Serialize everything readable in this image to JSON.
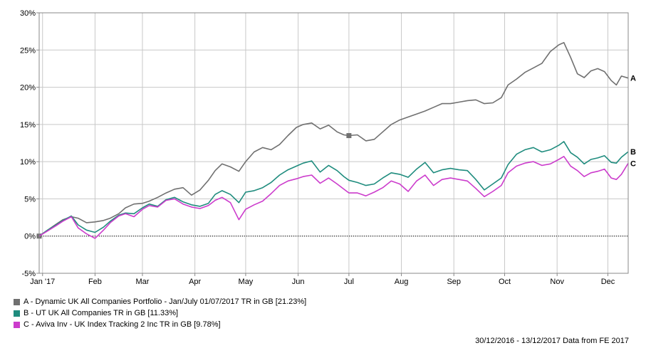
{
  "chart_data": {
    "type": "line",
    "title": "",
    "xlabel": "",
    "ylabel": "",
    "ylim": [
      -5,
      30
    ],
    "y_ticks": [
      -5,
      0,
      5,
      10,
      15,
      20,
      25,
      30
    ],
    "y_tick_labels": [
      "-5%",
      "0%",
      "5%",
      "10%",
      "15%",
      "20%",
      "25%",
      "30%"
    ],
    "x_range": [
      "2016-12-30",
      "2017-12-13"
    ],
    "x_ticks": [
      {
        "date": "2017-01-01",
        "label": "Jan '17"
      },
      {
        "date": "2017-02-01",
        "label": "Feb"
      },
      {
        "date": "2017-03-01",
        "label": "Mar"
      },
      {
        "date": "2017-04-01",
        "label": "Apr"
      },
      {
        "date": "2017-05-01",
        "label": "May"
      },
      {
        "date": "2017-06-01",
        "label": "Jun"
      },
      {
        "date": "2017-07-01",
        "label": "Jul"
      },
      {
        "date": "2017-08-01",
        "label": "Aug"
      },
      {
        "date": "2017-09-01",
        "label": "Sep"
      },
      {
        "date": "2017-10-01",
        "label": "Oct"
      },
      {
        "date": "2017-11-01",
        "label": "Nov"
      },
      {
        "date": "2017-12-01",
        "label": "Dec"
      }
    ],
    "grid": true,
    "legend_position": "bottom-left",
    "zero_line_dotted": true,
    "series": [
      {
        "name": "A - Dynamic UK All Companies Portfolio - Jan/July 01/07/2017 TR in GB [21.23%]",
        "end_label": "A",
        "color": "#707070",
        "markers": [
          {
            "x": "2016-12-30",
            "y": 0
          },
          {
            "x": "2017-07-01",
            "y": 13.5
          }
        ],
        "points": [
          [
            "2016-12-30",
            0
          ],
          [
            "2017-01-04",
            0.8
          ],
          [
            "2017-01-09",
            1.6
          ],
          [
            "2017-01-13",
            2.2
          ],
          [
            "2017-01-18",
            2.6
          ],
          [
            "2017-01-22",
            2.4
          ],
          [
            "2017-01-27",
            1.8
          ],
          [
            "2017-02-01",
            1.9
          ],
          [
            "2017-02-06",
            2.1
          ],
          [
            "2017-02-10",
            2.4
          ],
          [
            "2017-02-15",
            3.0
          ],
          [
            "2017-02-19",
            3.8
          ],
          [
            "2017-02-24",
            4.3
          ],
          [
            "2017-03-01",
            4.4
          ],
          [
            "2017-03-05",
            4.7
          ],
          [
            "2017-03-10",
            5.2
          ],
          [
            "2017-03-15",
            5.8
          ],
          [
            "2017-03-20",
            6.3
          ],
          [
            "2017-03-25",
            6.5
          ],
          [
            "2017-03-30",
            5.5
          ],
          [
            "2017-04-04",
            6.2
          ],
          [
            "2017-04-09",
            7.5
          ],
          [
            "2017-04-13",
            8.8
          ],
          [
            "2017-04-17",
            9.7
          ],
          [
            "2017-04-22",
            9.3
          ],
          [
            "2017-04-27",
            8.7
          ],
          [
            "2017-05-01",
            10.0
          ],
          [
            "2017-05-06",
            11.3
          ],
          [
            "2017-05-11",
            11.9
          ],
          [
            "2017-05-16",
            11.6
          ],
          [
            "2017-05-21",
            12.3
          ],
          [
            "2017-05-26",
            13.5
          ],
          [
            "2017-05-31",
            14.6
          ],
          [
            "2017-06-04",
            15.0
          ],
          [
            "2017-06-09",
            15.2
          ],
          [
            "2017-06-14",
            14.4
          ],
          [
            "2017-06-19",
            14.9
          ],
          [
            "2017-06-24",
            14.0
          ],
          [
            "2017-06-28",
            13.6
          ],
          [
            "2017-07-01",
            13.5
          ],
          [
            "2017-07-06",
            13.6
          ],
          [
            "2017-07-11",
            12.8
          ],
          [
            "2017-07-16",
            13.0
          ],
          [
            "2017-07-21",
            14.0
          ],
          [
            "2017-07-26",
            15.0
          ],
          [
            "2017-07-31",
            15.6
          ],
          [
            "2017-08-05",
            16.0
          ],
          [
            "2017-08-10",
            16.4
          ],
          [
            "2017-08-15",
            16.8
          ],
          [
            "2017-08-20",
            17.3
          ],
          [
            "2017-08-25",
            17.8
          ],
          [
            "2017-08-30",
            17.8
          ],
          [
            "2017-09-04",
            18.0
          ],
          [
            "2017-09-09",
            18.2
          ],
          [
            "2017-09-14",
            18.3
          ],
          [
            "2017-09-19",
            17.8
          ],
          [
            "2017-09-24",
            17.9
          ],
          [
            "2017-09-29",
            18.6
          ],
          [
            "2017-10-03",
            20.3
          ],
          [
            "2017-10-08",
            21.1
          ],
          [
            "2017-10-13",
            22.0
          ],
          [
            "2017-10-18",
            22.6
          ],
          [
            "2017-10-23",
            23.2
          ],
          [
            "2017-10-28",
            24.8
          ],
          [
            "2017-11-02",
            25.7
          ],
          [
            "2017-11-05",
            26.0
          ],
          [
            "2017-11-09",
            24.0
          ],
          [
            "2017-11-13",
            21.8
          ],
          [
            "2017-11-17",
            21.3
          ],
          [
            "2017-11-21",
            22.2
          ],
          [
            "2017-11-25",
            22.5
          ],
          [
            "2017-11-29",
            22.1
          ],
          [
            "2017-12-03",
            20.9
          ],
          [
            "2017-12-06",
            20.3
          ],
          [
            "2017-12-09",
            21.5
          ],
          [
            "2017-12-13",
            21.23
          ]
        ]
      },
      {
        "name": "B - UT UK All Companies TR in GB [11.33%]",
        "end_label": "B",
        "color": "#1f8c7e",
        "markers": [],
        "points": [
          [
            "2016-12-30",
            0
          ],
          [
            "2017-01-04",
            0.8
          ],
          [
            "2017-01-09",
            1.5
          ],
          [
            "2017-01-13",
            2.1
          ],
          [
            "2017-01-18",
            2.7
          ],
          [
            "2017-01-22",
            1.5
          ],
          [
            "2017-01-27",
            0.8
          ],
          [
            "2017-02-01",
            0.5
          ],
          [
            "2017-02-06",
            1.2
          ],
          [
            "2017-02-10",
            2.0
          ],
          [
            "2017-02-15",
            2.8
          ],
          [
            "2017-02-19",
            3.1
          ],
          [
            "2017-02-24",
            3.0
          ],
          [
            "2017-03-01",
            3.8
          ],
          [
            "2017-03-05",
            4.3
          ],
          [
            "2017-03-10",
            4.0
          ],
          [
            "2017-03-15",
            4.9
          ],
          [
            "2017-03-20",
            5.2
          ],
          [
            "2017-03-25",
            4.6
          ],
          [
            "2017-03-30",
            4.2
          ],
          [
            "2017-04-04",
            4.0
          ],
          [
            "2017-04-09",
            4.4
          ],
          [
            "2017-04-13",
            5.6
          ],
          [
            "2017-04-17",
            6.1
          ],
          [
            "2017-04-22",
            5.6
          ],
          [
            "2017-04-27",
            4.5
          ],
          [
            "2017-05-01",
            5.9
          ],
          [
            "2017-05-06",
            6.1
          ],
          [
            "2017-05-11",
            6.5
          ],
          [
            "2017-05-16",
            7.2
          ],
          [
            "2017-05-21",
            8.2
          ],
          [
            "2017-05-26",
            8.9
          ],
          [
            "2017-05-31",
            9.4
          ],
          [
            "2017-06-04",
            9.8
          ],
          [
            "2017-06-09",
            10.1
          ],
          [
            "2017-06-14",
            8.6
          ],
          [
            "2017-06-19",
            9.5
          ],
          [
            "2017-06-24",
            8.8
          ],
          [
            "2017-06-28",
            8.0
          ],
          [
            "2017-07-01",
            7.5
          ],
          [
            "2017-07-06",
            7.2
          ],
          [
            "2017-07-11",
            6.8
          ],
          [
            "2017-07-16",
            7.0
          ],
          [
            "2017-07-21",
            7.8
          ],
          [
            "2017-07-26",
            8.5
          ],
          [
            "2017-07-31",
            8.3
          ],
          [
            "2017-08-05",
            7.9
          ],
          [
            "2017-08-10",
            9.0
          ],
          [
            "2017-08-15",
            9.9
          ],
          [
            "2017-08-20",
            8.5
          ],
          [
            "2017-08-25",
            8.9
          ],
          [
            "2017-08-30",
            9.1
          ],
          [
            "2017-09-04",
            8.9
          ],
          [
            "2017-09-09",
            8.8
          ],
          [
            "2017-09-14",
            7.6
          ],
          [
            "2017-09-19",
            6.2
          ],
          [
            "2017-09-24",
            7.0
          ],
          [
            "2017-09-29",
            7.8
          ],
          [
            "2017-10-03",
            9.6
          ],
          [
            "2017-10-08",
            11.0
          ],
          [
            "2017-10-13",
            11.6
          ],
          [
            "2017-10-18",
            11.9
          ],
          [
            "2017-10-23",
            11.3
          ],
          [
            "2017-10-28",
            11.6
          ],
          [
            "2017-11-02",
            12.2
          ],
          [
            "2017-11-05",
            12.7
          ],
          [
            "2017-11-09",
            11.2
          ],
          [
            "2017-11-13",
            10.6
          ],
          [
            "2017-11-17",
            9.7
          ],
          [
            "2017-11-21",
            10.3
          ],
          [
            "2017-11-25",
            10.5
          ],
          [
            "2017-11-29",
            10.8
          ],
          [
            "2017-12-03",
            9.9
          ],
          [
            "2017-12-06",
            9.8
          ],
          [
            "2017-12-09",
            10.6
          ],
          [
            "2017-12-13",
            11.33
          ]
        ]
      },
      {
        "name": "C - Aviva Inv - UK Index Tracking 2 Inc TR in GB [9.78%]",
        "end_label": "C",
        "color": "#cc3ccc",
        "markers": [],
        "points": [
          [
            "2016-12-30",
            0
          ],
          [
            "2017-01-04",
            0.7
          ],
          [
            "2017-01-09",
            1.4
          ],
          [
            "2017-01-13",
            2.0
          ],
          [
            "2017-01-18",
            2.6
          ],
          [
            "2017-01-22",
            1.1
          ],
          [
            "2017-01-27",
            0.3
          ],
          [
            "2017-02-01",
            -0.3
          ],
          [
            "2017-02-06",
            0.8
          ],
          [
            "2017-02-10",
            1.8
          ],
          [
            "2017-02-15",
            2.7
          ],
          [
            "2017-02-19",
            3.0
          ],
          [
            "2017-02-24",
            2.6
          ],
          [
            "2017-03-01",
            3.6
          ],
          [
            "2017-03-05",
            4.1
          ],
          [
            "2017-03-10",
            3.9
          ],
          [
            "2017-03-15",
            4.8
          ],
          [
            "2017-03-20",
            5.0
          ],
          [
            "2017-03-25",
            4.3
          ],
          [
            "2017-03-30",
            3.9
          ],
          [
            "2017-04-04",
            3.7
          ],
          [
            "2017-04-09",
            4.1
          ],
          [
            "2017-04-13",
            4.8
          ],
          [
            "2017-04-17",
            5.2
          ],
          [
            "2017-04-22",
            4.5
          ],
          [
            "2017-04-27",
            2.2
          ],
          [
            "2017-05-01",
            3.6
          ],
          [
            "2017-05-06",
            4.2
          ],
          [
            "2017-05-11",
            4.7
          ],
          [
            "2017-05-16",
            5.7
          ],
          [
            "2017-05-21",
            6.8
          ],
          [
            "2017-05-26",
            7.4
          ],
          [
            "2017-05-31",
            7.7
          ],
          [
            "2017-06-04",
            8.0
          ],
          [
            "2017-06-09",
            8.2
          ],
          [
            "2017-06-14",
            7.1
          ],
          [
            "2017-06-19",
            7.8
          ],
          [
            "2017-06-24",
            7.0
          ],
          [
            "2017-06-28",
            6.3
          ],
          [
            "2017-07-01",
            5.8
          ],
          [
            "2017-07-06",
            5.8
          ],
          [
            "2017-07-11",
            5.4
          ],
          [
            "2017-07-16",
            5.9
          ],
          [
            "2017-07-21",
            6.5
          ],
          [
            "2017-07-26",
            7.4
          ],
          [
            "2017-07-31",
            7.0
          ],
          [
            "2017-08-05",
            6.0
          ],
          [
            "2017-08-10",
            7.4
          ],
          [
            "2017-08-15",
            8.2
          ],
          [
            "2017-08-20",
            6.8
          ],
          [
            "2017-08-25",
            7.6
          ],
          [
            "2017-08-30",
            7.8
          ],
          [
            "2017-09-04",
            7.6
          ],
          [
            "2017-09-09",
            7.4
          ],
          [
            "2017-09-14",
            6.4
          ],
          [
            "2017-09-19",
            5.3
          ],
          [
            "2017-09-24",
            6.0
          ],
          [
            "2017-09-29",
            6.8
          ],
          [
            "2017-10-03",
            8.5
          ],
          [
            "2017-10-08",
            9.4
          ],
          [
            "2017-10-13",
            9.8
          ],
          [
            "2017-10-18",
            10.0
          ],
          [
            "2017-10-23",
            9.5
          ],
          [
            "2017-10-28",
            9.7
          ],
          [
            "2017-11-02",
            10.3
          ],
          [
            "2017-11-05",
            10.7
          ],
          [
            "2017-11-09",
            9.4
          ],
          [
            "2017-11-13",
            8.8
          ],
          [
            "2017-11-17",
            8.0
          ],
          [
            "2017-11-21",
            8.5
          ],
          [
            "2017-11-25",
            8.7
          ],
          [
            "2017-11-29",
            9.0
          ],
          [
            "2017-12-03",
            7.8
          ],
          [
            "2017-12-06",
            7.6
          ],
          [
            "2017-12-09",
            8.3
          ],
          [
            "2017-12-13",
            9.78
          ]
        ]
      }
    ]
  },
  "footer": {
    "text": "30/12/2016 - 13/12/2017 Data from FE 2017"
  }
}
